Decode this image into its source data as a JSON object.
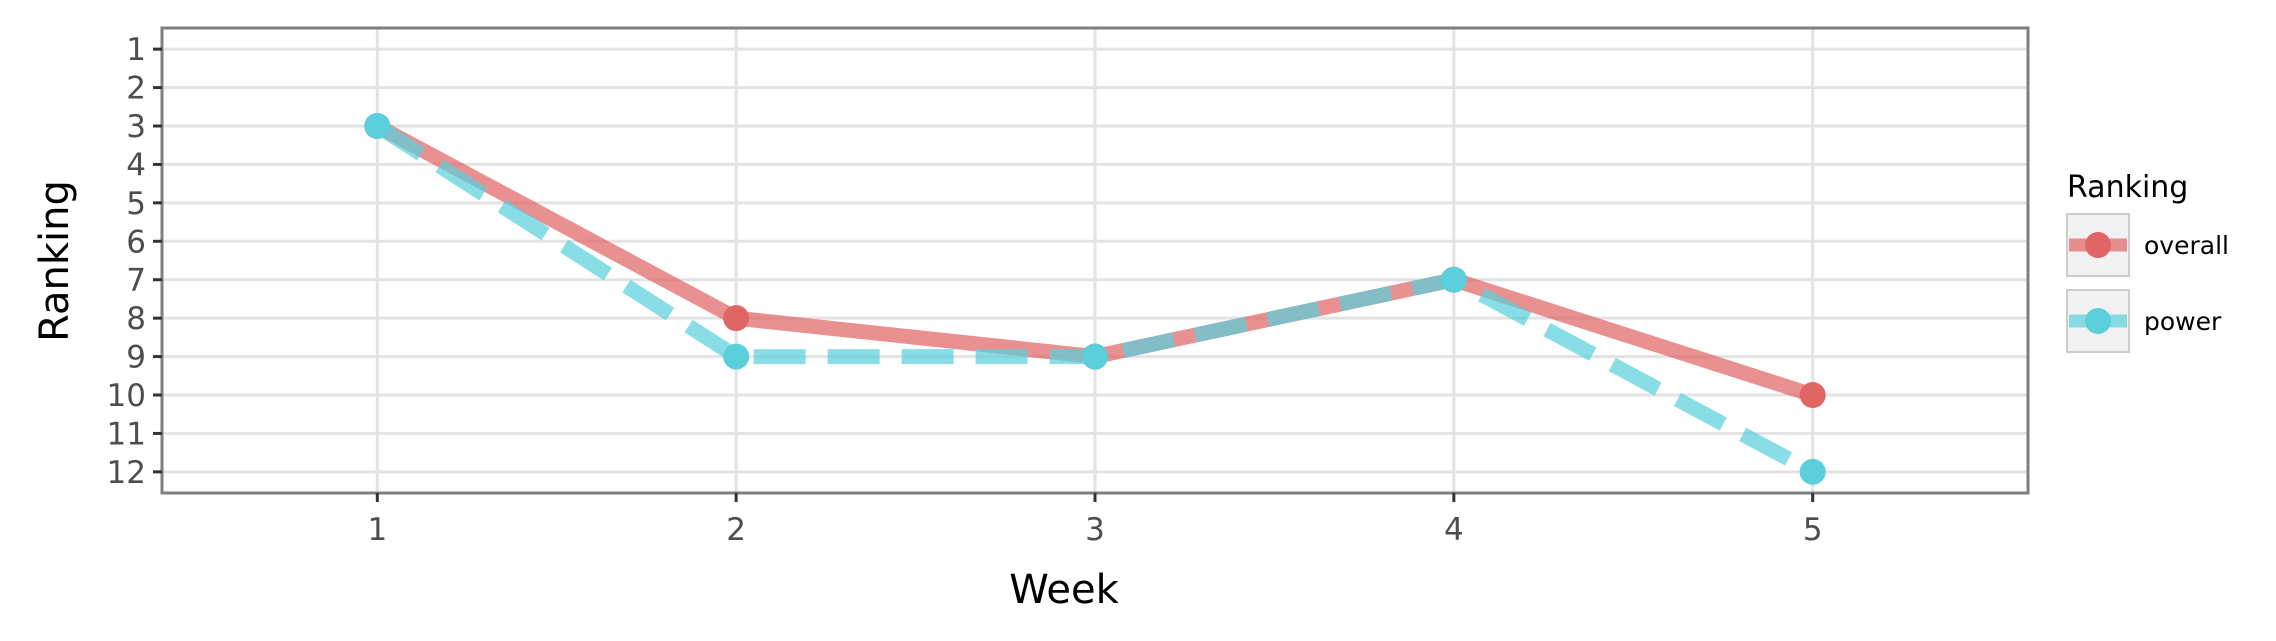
{
  "chart_data": {
    "type": "line",
    "xlabel": "Week",
    "ylabel": "Ranking",
    "x": [
      1,
      2,
      3,
      4,
      5
    ],
    "xlim": [
      0.4,
      5.6
    ],
    "ylim": [
      12.55,
      0.45
    ],
    "y_reversed": true,
    "x_ticks": [
      "1",
      "2",
      "3",
      "4",
      "5"
    ],
    "y_ticks": [
      "1",
      "2",
      "3",
      "4",
      "5",
      "6",
      "7",
      "8",
      "9",
      "10",
      "11",
      "12"
    ],
    "grid": true,
    "legend": {
      "title": "Ranking",
      "position": "right",
      "entries": [
        "overall",
        "power"
      ]
    },
    "series": [
      {
        "name": "overall",
        "values": [
          3,
          8,
          9,
          7,
          10
        ],
        "color": "#E06666",
        "line_style": "solid"
      },
      {
        "name": "power",
        "values": [
          3,
          9,
          9,
          7,
          12
        ],
        "color": "#5BD0DC",
        "line_style": "dashed"
      }
    ]
  }
}
